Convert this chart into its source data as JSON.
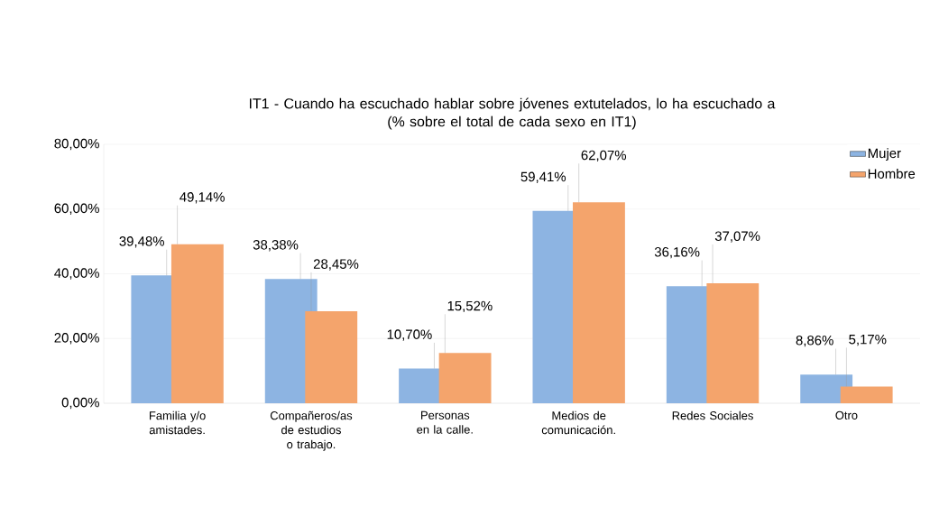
{
  "chart_data": {
    "type": "bar",
    "title": "IT1 - Cuando ha escuchado hablar sobre jóvenes extutelados, lo ha escuchado a",
    "subtitle": "(% sobre el total de cada sexo en IT1)",
    "categories": [
      "Familia y/o amistades.",
      "Compañeros/as de estudios o trabajo.",
      "Personas en la calle.",
      "Medios de comunicación.",
      "Redes Sociales",
      "Otro"
    ],
    "series": [
      {
        "name": "Mujer",
        "color": "#8db4e2",
        "values": [
          39.48,
          38.38,
          10.7,
          59.41,
          36.16,
          8.86
        ],
        "value_labels": [
          "39,48%",
          "38,38%",
          "10,70%",
          "59,41%",
          "36,16%",
          "8,86%"
        ]
      },
      {
        "name": "Hombre",
        "color": "#f4a46c",
        "values": [
          49.14,
          28.45,
          15.52,
          62.07,
          37.07,
          5.17
        ],
        "value_labels": [
          "49,14%",
          "28,45%",
          "15,52%",
          "62,07%",
          "37,07%",
          "5,17%"
        ]
      }
    ],
    "ylim": [
      0,
      80
    ],
    "yticks": [
      {
        "value": 0,
        "label": "0,00%"
      },
      {
        "value": 20,
        "label": "20,00%"
      },
      {
        "value": 40,
        "label": "40,00%"
      },
      {
        "value": 60,
        "label": "60,00%"
      },
      {
        "value": 80,
        "label": "80,00%"
      }
    ],
    "grid": "y",
    "legend": "top right"
  }
}
